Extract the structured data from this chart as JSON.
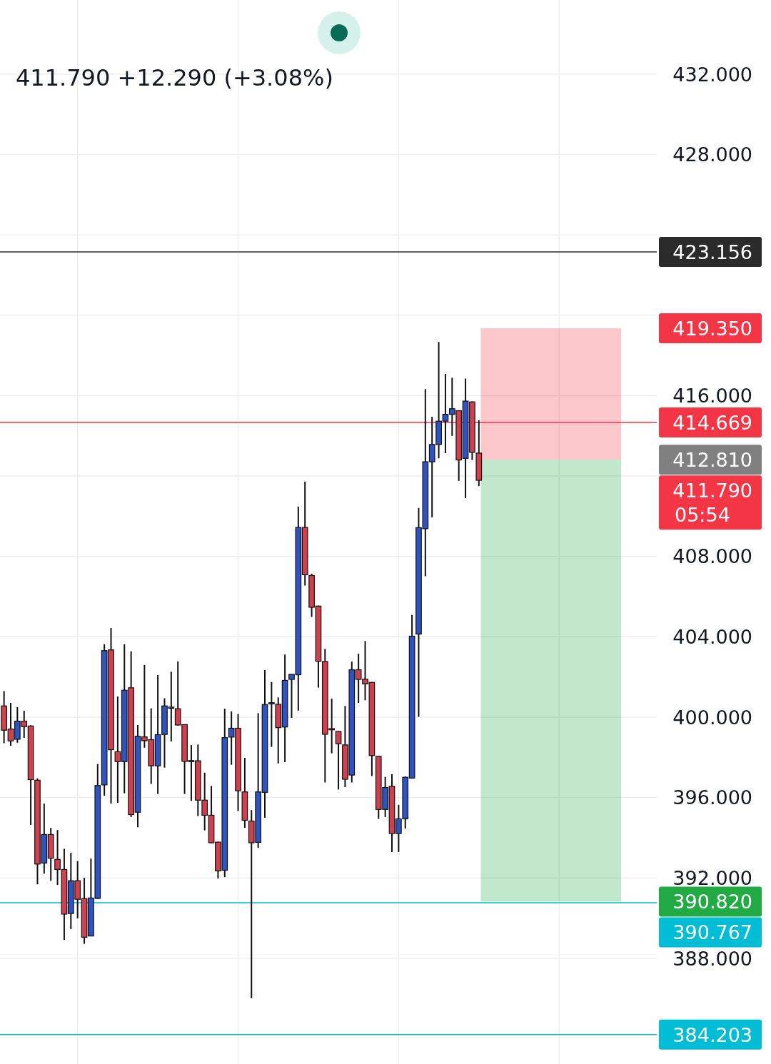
{
  "chart_data": {
    "type": "candlestick",
    "subtitle": "411.790  +12.290 (+3.08%)",
    "categories": [
      null,
      null,
      null,
      null,
      null,
      null,
      null,
      null,
      null,
      null,
      null,
      null,
      null,
      null,
      null,
      null,
      null,
      null,
      null,
      null,
      null,
      null,
      null,
      null,
      null,
      null,
      null,
      null,
      null,
      null,
      null,
      null,
      null,
      null,
      null,
      null,
      null,
      null,
      null,
      null,
      null,
      null,
      null,
      null,
      null,
      null,
      null,
      null,
      null,
      null,
      null,
      null,
      null,
      null,
      null,
      null,
      null,
      null,
      null,
      null,
      null,
      null,
      null,
      null,
      null,
      null,
      null,
      null,
      null,
      null,
      null,
      null,
      null,
      null,
      null,
      null,
      null,
      null,
      null,
      null,
      null,
      null,
      null,
      null,
      null,
      null,
      null,
      null,
      null,
      null,
      null,
      null,
      null,
      null,
      null,
      null,
      null,
      null
    ],
    "ohlc": [
      [
        400.56,
        401.3,
        398.7,
        399.35
      ],
      [
        399.41,
        400.71,
        398.58,
        398.82
      ],
      [
        398.9,
        400.5,
        398.73,
        399.8
      ],
      [
        399.8,
        400.32,
        398.97,
        399.53
      ],
      [
        399.56,
        399.6,
        394.64,
        396.89
      ],
      [
        396.86,
        396.96,
        391.68,
        392.69
      ],
      [
        392.74,
        395.7,
        392.21,
        394.16
      ],
      [
        394.16,
        394.49,
        391.86,
        392.98
      ],
      [
        392.92,
        394.38,
        391.65,
        392.42
      ],
      [
        392.42,
        393.45,
        388.91,
        390.2
      ],
      [
        390.23,
        393.25,
        389.46,
        391.86
      ],
      [
        391.86,
        392.84,
        389.99,
        390.94
      ],
      [
        390.97,
        392.01,
        388.72,
        389.05
      ],
      [
        389.11,
        392.96,
        389.1,
        391.0
      ],
      [
        390.98,
        397.67,
        390.95,
        396.6
      ],
      [
        396.63,
        403.63,
        396.09,
        403.31
      ],
      [
        403.35,
        404.44,
        395.7,
        398.38
      ],
      [
        398.28,
        401.03,
        395.74,
        397.79
      ],
      [
        397.79,
        403.63,
        396.21,
        401.34
      ],
      [
        401.46,
        403.28,
        395.03,
        395.15
      ],
      [
        395.27,
        399.61,
        394.52,
        399.05
      ],
      [
        399.02,
        402.6,
        398.48,
        398.83
      ],
      [
        398.88,
        400.44,
        396.68,
        397.58
      ],
      [
        397.58,
        402.1,
        396.18,
        399.13
      ],
      [
        399.14,
        400.94,
        397.49,
        400.56
      ],
      [
        400.5,
        402.26,
        398.79,
        400.44
      ],
      [
        400.42,
        402.78,
        399.58,
        399.61
      ],
      [
        399.63,
        399.65,
        396.18,
        397.8
      ],
      [
        397.84,
        398.61,
        395.83,
        397.8
      ],
      [
        397.83,
        398.64,
        395.08,
        395.87
      ],
      [
        395.87,
        397.24,
        394.37,
        395.12
      ],
      [
        395.12,
        396.58,
        393.73,
        393.75
      ],
      [
        393.78,
        393.8,
        391.97,
        392.35
      ],
      [
        392.38,
        400.42,
        392.04,
        398.98
      ],
      [
        399.01,
        400.29,
        397.63,
        399.45
      ],
      [
        399.45,
        400.16,
        395.33,
        396.34
      ],
      [
        396.28,
        397.98,
        394.49,
        394.87
      ],
      [
        394.83,
        395.37,
        386.02,
        393.75
      ],
      [
        393.77,
        400.2,
        393.5,
        396.28
      ],
      [
        396.26,
        402.34,
        394.99,
        400.63
      ],
      [
        400.66,
        401.75,
        398.52,
        400.72
      ],
      [
        400.64,
        400.98,
        397.7,
        399.48
      ],
      [
        399.51,
        403.12,
        397.76,
        401.83
      ],
      [
        401.88,
        402.14,
        399.97,
        402.13
      ],
      [
        402.11,
        410.48,
        400.33,
        409.44
      ],
      [
        409.44,
        411.72,
        406.55,
        407.09
      ],
      [
        407.05,
        407.14,
        404.99,
        405.47
      ],
      [
        405.53,
        405.55,
        401.47,
        402.78
      ],
      [
        402.77,
        403.4,
        396.75,
        399.15
      ],
      [
        399.43,
        400.92,
        398.2,
        399.37
      ],
      [
        399.29,
        399.31,
        396.4,
        398.68
      ],
      [
        398.62,
        400.56,
        396.52,
        396.91
      ],
      [
        397.12,
        402.77,
        396.75,
        402.36
      ],
      [
        402.36,
        403.16,
        400.71,
        401.88
      ],
      [
        401.89,
        403.79,
        400.84,
        401.66
      ],
      [
        401.73,
        401.75,
        397.07,
        398.09
      ],
      [
        398.05,
        398.07,
        394.94,
        395.41
      ],
      [
        395.41,
        397.03,
        395.03,
        396.5
      ],
      [
        396.56,
        397.16,
        393.29,
        394.21
      ],
      [
        394.21,
        395.64,
        393.29,
        394.94
      ],
      [
        394.94,
        397.05,
        394.46,
        397.01
      ],
      [
        396.97,
        405.09,
        396.94,
        404.03
      ],
      [
        404.14,
        410.41,
        400.02,
        409.43
      ],
      [
        409.38,
        416.33,
        407.01,
        412.71
      ],
      [
        412.71,
        414.95,
        409.94,
        413.57
      ],
      [
        413.57,
        418.67,
        412.88,
        414.73
      ],
      [
        414.73,
        417.08,
        413.14,
        415.07
      ],
      [
        415.07,
        416.89,
        414.0,
        415.35
      ],
      [
        415.25,
        415.27,
        411.76,
        412.8
      ],
      [
        412.88,
        416.85,
        410.9,
        415.73
      ],
      [
        415.69,
        415.71,
        412.8,
        413.18
      ],
      [
        413.14,
        414.78,
        411.5,
        411.79
      ],
      null,
      null,
      null,
      null,
      null,
      null,
      null,
      null,
      null,
      null,
      null,
      null,
      null,
      null,
      null,
      null,
      null,
      null,
      null,
      null,
      null,
      null,
      null,
      null,
      null,
      null
    ],
    "ylim": [
      382.74,
      435.69
    ],
    "yticks": [
      {
        "value": 388,
        "label": "388.000"
      },
      {
        "value": 392,
        "label": "392.000"
      },
      {
        "value": 396,
        "label": "396.000"
      },
      {
        "value": 400,
        "label": "400.000"
      },
      {
        "value": 404,
        "label": "404.000"
      },
      {
        "value": 408,
        "label": "408.000"
      },
      {
        "value": 412,
        "label": null
      },
      {
        "value": 416,
        "label": "416.000"
      },
      {
        "value": 420,
        "label": null
      },
      {
        "value": 424,
        "label": null
      },
      {
        "value": 428,
        "label": "428.000"
      },
      {
        "value": 432,
        "label": "432.000"
      }
    ],
    "grid": true,
    "ref_lines": [
      {
        "axis": "y",
        "value": 423.156,
        "label": "423.156",
        "color": "#2b2b2b"
      },
      {
        "axis": "y",
        "value": 414.669,
        "label": "414.669",
        "color": "#f23645"
      },
      {
        "axis": "y",
        "value": 390.767,
        "label": "390.767",
        "color": "#00bcd4"
      },
      {
        "axis": "y",
        "value": 384.203,
        "label": "384.203",
        "color": "#00bcd4"
      }
    ],
    "bands": [
      {
        "axis": "y",
        "from": 412.81,
        "to": 419.35,
        "label": "419.350",
        "color": "#f23645"
      },
      {
        "axis": "y",
        "from": 412.81,
        "to": 390.82,
        "label": "390.820",
        "color": "#22ab44"
      }
    ],
    "annotations": [
      "412.810",
      "411.790",
      "05:54"
    ]
  }
}
